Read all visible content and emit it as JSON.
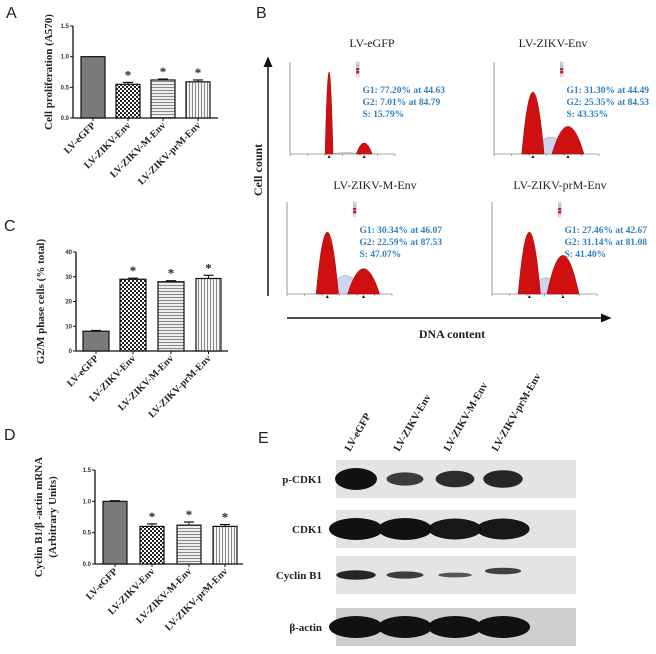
{
  "panel_labels": {
    "a": "A",
    "b": "B",
    "c": "C",
    "d": "D",
    "e": "E"
  },
  "chart_data": [
    {
      "id": "A",
      "type": "bar",
      "title": "",
      "ylabel": "Cell proliferation (A570)",
      "ylabel2": "",
      "xlabel": "",
      "categories": [
        "LV-eGFP",
        "LV-ZIKV-Env",
        "LV-ZIKV-M-Env",
        "LV-ZIKV-prM-Env"
      ],
      "values": [
        1.0,
        0.55,
        0.62,
        0.59
      ],
      "errors": [
        0.0,
        0.03,
        0.015,
        0.03
      ],
      "significance": [
        "",
        "*",
        "*",
        "*"
      ],
      "ylim": [
        0,
        1.5
      ],
      "yticks": [
        "0.0",
        "0.5",
        "1.0",
        "1.5"
      ],
      "ytick_values": [
        0,
        0.5,
        1.0,
        1.5
      ],
      "patterns": [
        "solid",
        "checker",
        "hlines",
        "vlines"
      ],
      "grid": false
    },
    {
      "id": "C",
      "type": "bar",
      "title": "",
      "ylabel": "G2/M phase cells (% total)",
      "ylabel2": "",
      "xlabel": "",
      "categories": [
        "LV-eGFP",
        "LV-ZIKV-Env",
        "LV-ZIKV-M-Env",
        "LV-ZIKV-prM-Env"
      ],
      "values": [
        8,
        29,
        28,
        29.3
      ],
      "errors": [
        0.3,
        0.4,
        0.4,
        1.3
      ],
      "significance": [
        "",
        "*",
        "*",
        "*"
      ],
      "ylim": [
        0,
        40
      ],
      "yticks": [
        "0",
        "10",
        "20",
        "30",
        "40"
      ],
      "ytick_values": [
        0,
        10,
        20,
        30,
        40
      ],
      "patterns": [
        "solid",
        "checker",
        "hlines",
        "vlines"
      ],
      "grid": false
    },
    {
      "id": "D",
      "type": "bar",
      "title": "",
      "ylabel": "Cyclin B1/β -actin mRNA",
      "ylabel2": "(Arbitrary Units)",
      "xlabel": "",
      "categories": [
        "LV-eGFP",
        "LV-ZIKV-Env",
        "LV-ZIKV-M-Env",
        "LV-ZIKV-prM-Env"
      ],
      "values": [
        1.0,
        0.6,
        0.62,
        0.6
      ],
      "errors": [
        0.01,
        0.04,
        0.05,
        0.03
      ],
      "significance": [
        "",
        "*",
        "*",
        "*"
      ],
      "ylim": [
        0,
        1.5
      ],
      "yticks": [
        "0.0",
        "0.5",
        "1.0",
        "1.5"
      ],
      "ytick_values": [
        0,
        0.5,
        1.0,
        1.5
      ],
      "patterns": [
        "solid",
        "checker",
        "hlines",
        "vlines"
      ],
      "grid": false
    }
  ],
  "flow": {
    "y_axis_label": "Cell count",
    "x_axis_label": "DNA content",
    "histograms": [
      {
        "title": "LV-eGFP",
        "g1": "G1: 77.20% at 44.63",
        "g2": "G2: 7.01% at 84.79",
        "s": "S: 15.79%",
        "g1_pct": 77.2,
        "g1_pos": 44.63,
        "g2_pct": 7.01,
        "g2_pos": 84.79,
        "s_pct": 15.79
      },
      {
        "title": "LV-ZIKV-Env",
        "g1": "G1: 31.30% at 44.49",
        "g2": "G2: 25.35% at 84.53",
        "s": "S: 43.35%",
        "g1_pct": 31.3,
        "g1_pos": 44.49,
        "g2_pct": 25.35,
        "g2_pos": 84.53,
        "s_pct": 43.35
      },
      {
        "title": "LV-ZIKV-M-Env",
        "g1": "G1: 30.34% at 46.07",
        "g2": "G2: 22.59% at 87.53",
        "s": "S: 47.07%",
        "g1_pct": 30.34,
        "g1_pos": 46.07,
        "g2_pct": 22.59,
        "g2_pos": 87.53,
        "s_pct": 47.07
      },
      {
        "title": "LV-ZIKV-prM-Env",
        "g1": "G1: 27.46% at 42.67",
        "g2": "G2: 31.14% at 81.08",
        "s": "S: 41.40%",
        "g1_pct": 27.46,
        "g1_pos": 42.67,
        "g2_pct": 31.14,
        "g2_pos": 81.08,
        "s_pct": 41.4
      }
    ],
    "x_range": [
      0,
      120
    ],
    "colors": {
      "peak": "#d01010",
      "s_phase": "#d0d4ec",
      "annotation": "#2f80c0"
    }
  },
  "western": {
    "lanes": [
      "LV-eGFP",
      "LV-ZIKV-Env",
      "LV-ZIKV-M-Env",
      "LV-ZIKV-prM-Env"
    ],
    "rows": [
      {
        "label": "p-CDK1",
        "intensity": [
          1.0,
          0.6,
          0.75,
          0.8
        ]
      },
      {
        "label": "CDK1",
        "intensity": [
          1.0,
          1.0,
          0.95,
          0.95
        ]
      },
      {
        "label": "Cyclin B1",
        "intensity": [
          0.8,
          0.6,
          0.35,
          0.55
        ]
      },
      {
        "label": "β-actin",
        "intensity": [
          1.0,
          1.0,
          1.0,
          1.0
        ]
      }
    ]
  }
}
